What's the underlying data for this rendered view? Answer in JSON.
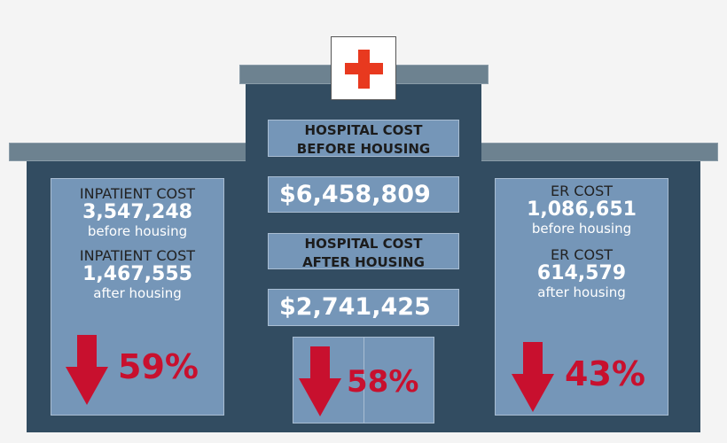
{
  "colors": {
    "building": "#324c61",
    "roof": "#6d8290",
    "panel": "#7596b8",
    "arrow": "#c8102e",
    "cross": "#e8391f"
  },
  "icon": "red-cross-icon",
  "center": {
    "before_title": [
      "HOSPITAL COST",
      "BEFORE HOUSING"
    ],
    "before_value": "$6,458,809",
    "after_title": [
      "HOSPITAL COST",
      "AFTER HOUSING"
    ],
    "after_value": "$2,741,425",
    "change": "58%"
  },
  "left": {
    "label1": "INPATIENT COST",
    "value1": "3,547,248",
    "sub1": "before  housing",
    "label2": "INPATIENT COST",
    "value2": "1,467,555",
    "sub2": "after housing",
    "change": "59%"
  },
  "right": {
    "label1": "ER  COST",
    "value1": "1,086,651",
    "sub1": "before housing",
    "label2": "ER  COST",
    "value2": "614,579",
    "sub2": "after housing",
    "change": "43%"
  }
}
